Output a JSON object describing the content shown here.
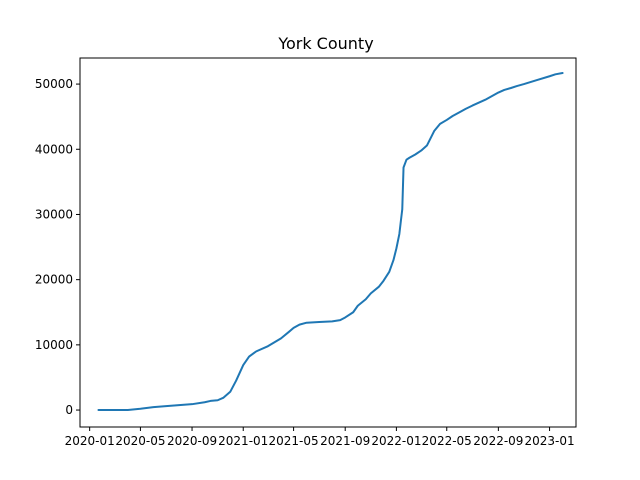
{
  "chart_data": {
    "type": "line",
    "title": "York County",
    "xlabel": "",
    "ylabel": "",
    "grid": false,
    "legend": "none",
    "xlim": [
      "2019-12-09",
      "2023-03-05"
    ],
    "ylim": [
      -2600,
      54000
    ],
    "x_ticks": [
      "2020-01",
      "2020-05",
      "2020-09",
      "2021-01",
      "2021-05",
      "2021-09",
      "2022-01",
      "2022-05",
      "2022-09",
      "2023-01"
    ],
    "y_ticks": [
      0,
      10000,
      20000,
      30000,
      40000,
      50000
    ],
    "series": [
      {
        "color": "#1f77b4",
        "x": [
          "2020-01-22",
          "2020-03-10",
          "2020-04-01",
          "2020-05-01",
          "2020-06-01",
          "2020-07-01",
          "2020-08-01",
          "2020-09-01",
          "2020-10-01",
          "2020-10-15",
          "2020-11-01",
          "2020-11-15",
          "2020-12-01",
          "2020-12-15",
          "2021-01-01",
          "2021-01-15",
          "2021-02-01",
          "2021-03-01",
          "2021-04-01",
          "2021-04-20",
          "2021-05-01",
          "2021-05-15",
          "2021-06-01",
          "2021-07-01",
          "2021-08-01",
          "2021-08-20",
          "2021-09-01",
          "2021-09-20",
          "2021-10-01",
          "2021-10-20",
          "2021-11-01",
          "2021-11-20",
          "2021-12-01",
          "2021-12-15",
          "2021-12-25",
          "2022-01-01",
          "2022-01-08",
          "2022-01-12",
          "2022-01-15",
          "2022-01-18",
          "2022-01-25",
          "2022-02-01",
          "2022-02-15",
          "2022-03-01",
          "2022-03-15",
          "2022-04-01",
          "2022-04-15",
          "2022-05-01",
          "2022-05-15",
          "2022-06-01",
          "2022-06-15",
          "2022-07-01",
          "2022-08-01",
          "2022-09-01",
          "2022-09-15",
          "2022-10-01",
          "2022-10-15",
          "2022-11-01",
          "2022-12-01",
          "2023-01-01",
          "2023-01-15",
          "2023-02-01"
        ],
        "y": [
          0,
          0,
          10,
          200,
          450,
          600,
          750,
          900,
          1200,
          1400,
          1500,
          1900,
          2800,
          4500,
          6900,
          8200,
          9000,
          9800,
          11000,
          12000,
          12600,
          13100,
          13400,
          13500,
          13600,
          13800,
          14200,
          15000,
          16000,
          17000,
          17900,
          18900,
          19800,
          21200,
          23000,
          24800,
          27000,
          29200,
          30800,
          37200,
          38400,
          38700,
          39200,
          39800,
          40600,
          42800,
          43900,
          44500,
          45100,
          45700,
          46200,
          46700,
          47600,
          48700,
          49100,
          49400,
          49700,
          50000,
          50600,
          51200,
          51500,
          51700
        ]
      }
    ]
  }
}
